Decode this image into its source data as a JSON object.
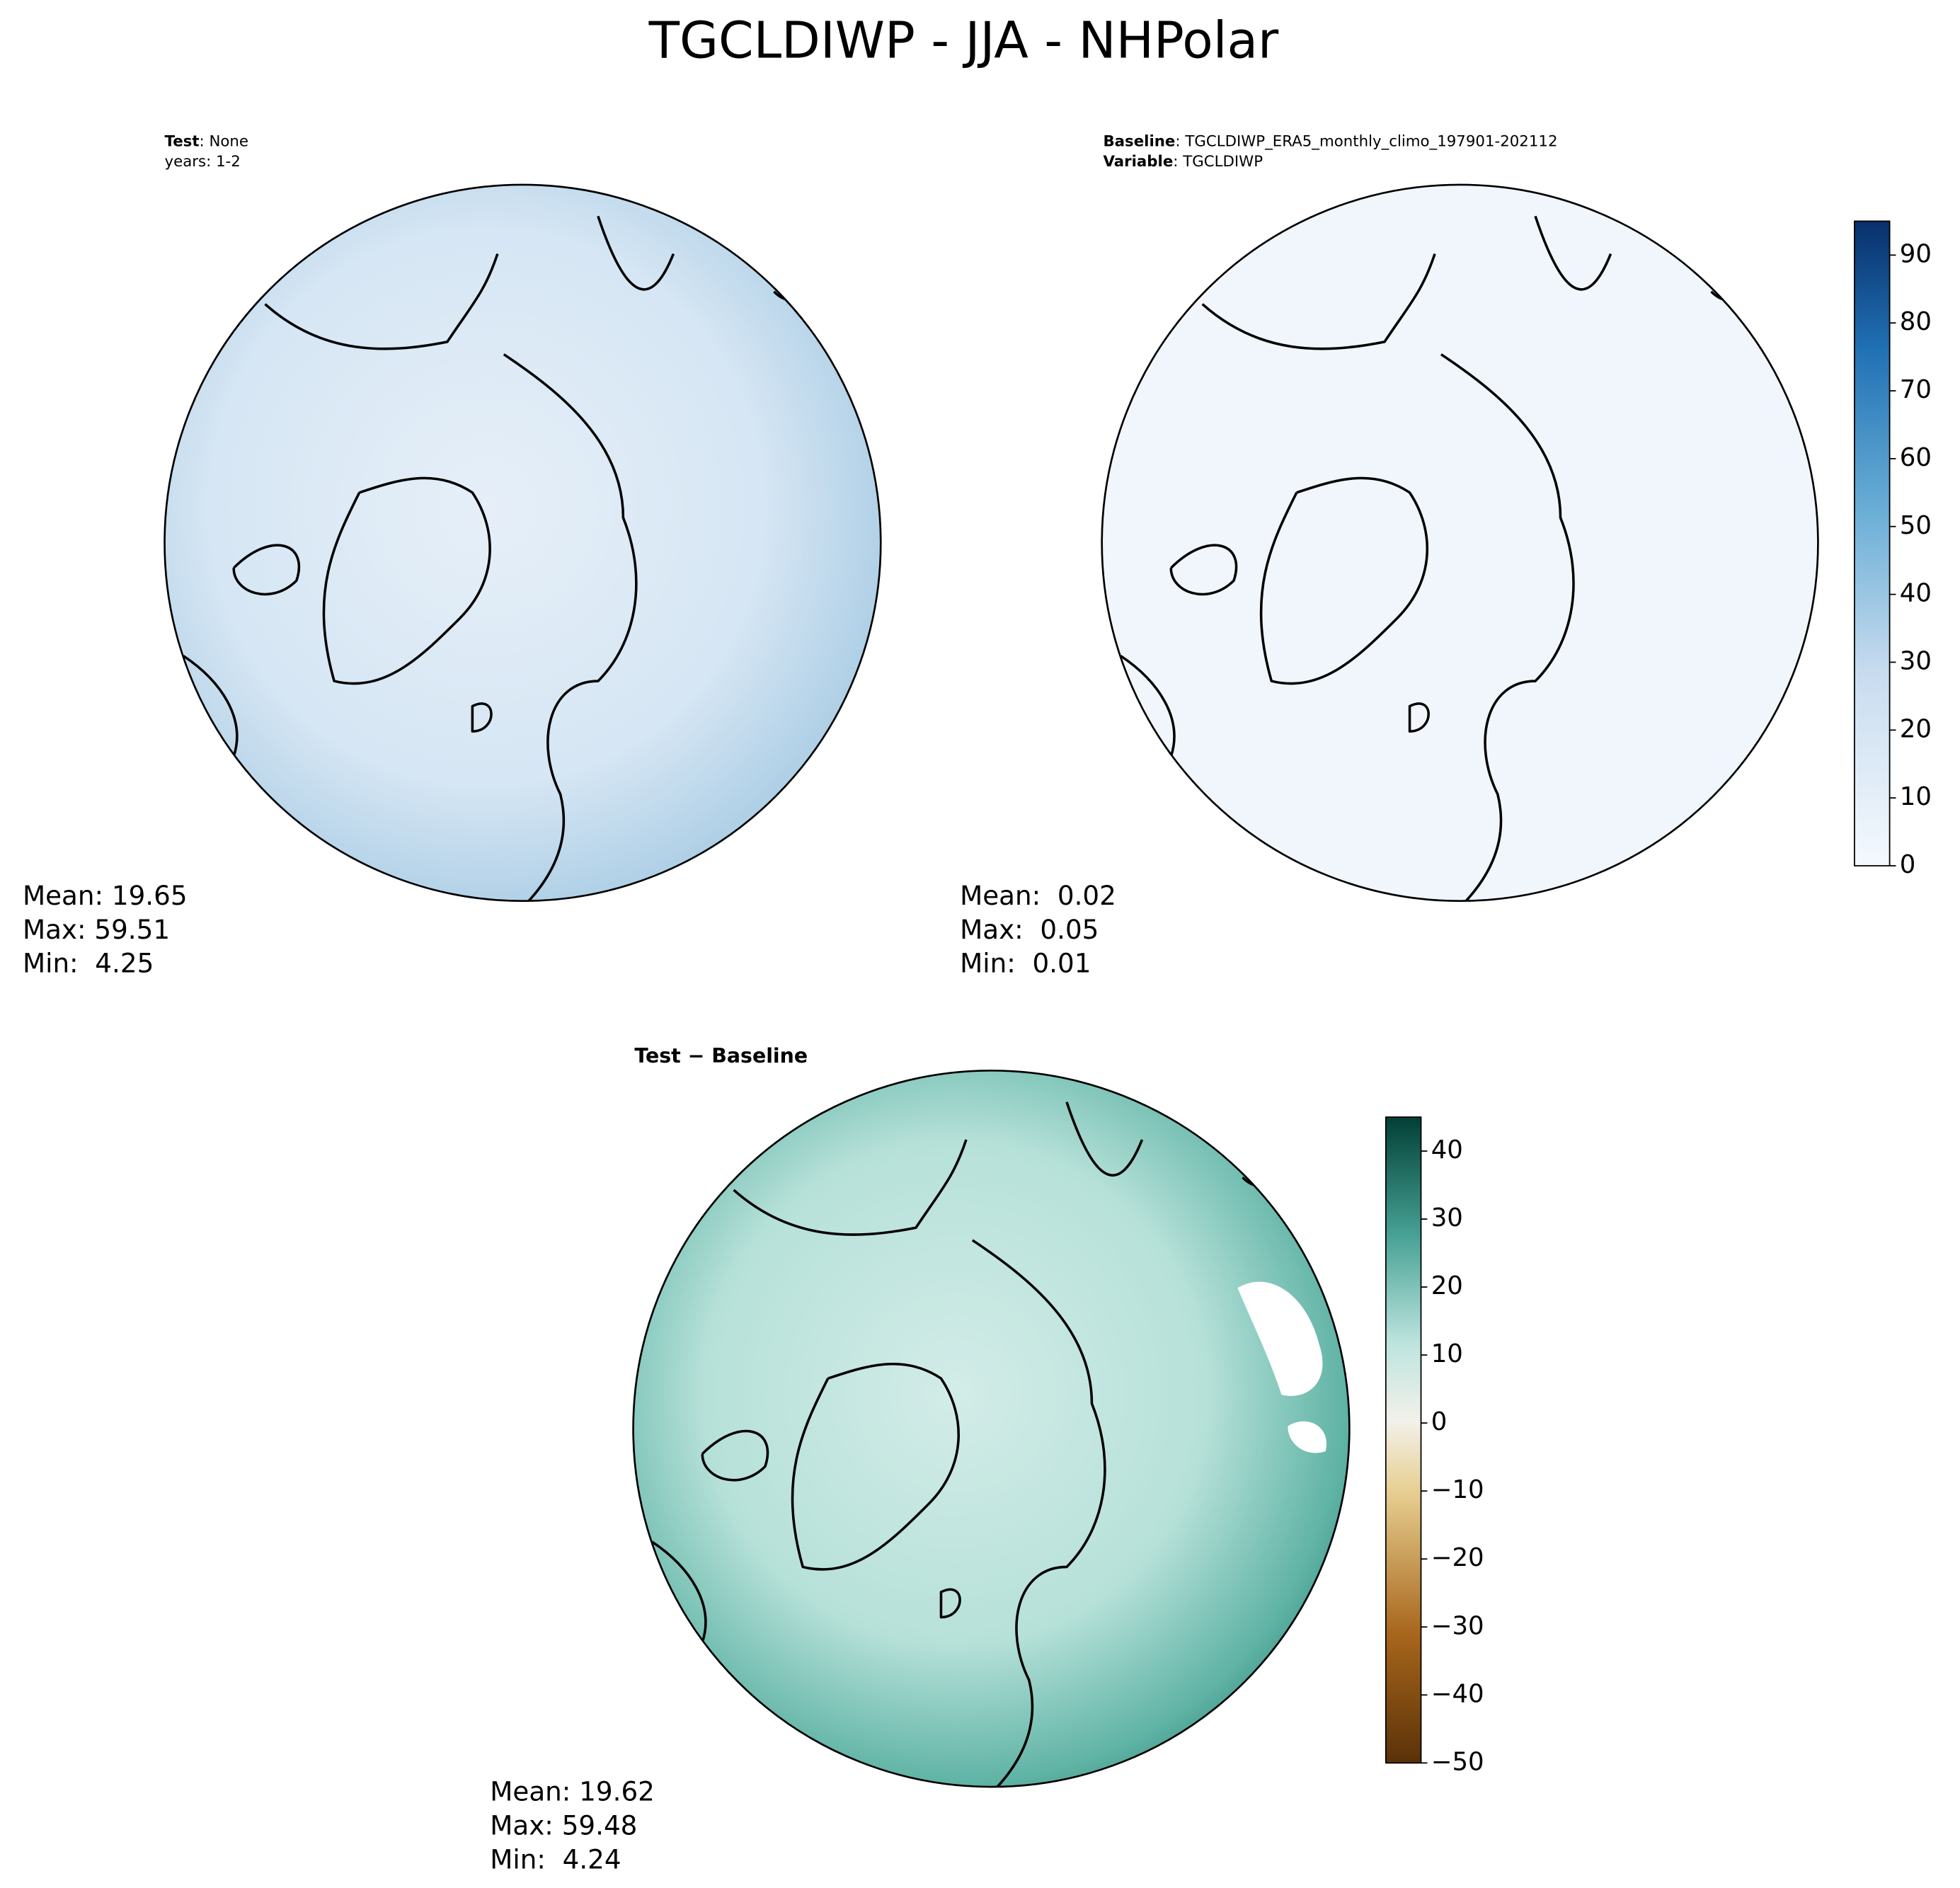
{
  "title": "TGCLDIWP - JJA - NHPolar",
  "panels": [
    {
      "label": [
        {
          "key": "Test",
          "text": ": None"
        },
        {
          "text": "years: 1-2"
        }
      ],
      "stats": [
        "Mean: 19.65",
        "Max: 59.51",
        "Min:  4.25"
      ]
    },
    {
      "label": [
        {
          "key": "Baseline",
          "text": ": TGCLDIWP_ERA5_monthly_climo_197901-202112"
        },
        {
          "key": "Variable",
          "text": ": TGCLDIWP"
        }
      ],
      "stats": [
        "Mean:  0.02",
        "Max:  0.05",
        "Min:  0.01"
      ]
    },
    {
      "label": [
        {
          "key": "Test − Baseline"
        }
      ],
      "stats": [
        "Mean: 19.62",
        "Max: 59.48",
        "Min:  4.24"
      ]
    }
  ],
  "colorbars": [
    {
      "lim": [
        0,
        95
      ],
      "ticks": [
        0,
        10,
        20,
        30,
        40,
        50,
        60,
        70,
        80,
        90
      ]
    },
    {
      "lim": [
        -50,
        45
      ],
      "ticks": [
        {
          "value": -50,
          "label": "−50"
        },
        {
          "value": -40,
          "label": "−40"
        },
        {
          "value": -30,
          "label": "−30"
        },
        {
          "value": -20,
          "label": "−20"
        },
        {
          "value": -10,
          "label": "−10"
        },
        0,
        10,
        20,
        30,
        40
      ]
    }
  ]
}
